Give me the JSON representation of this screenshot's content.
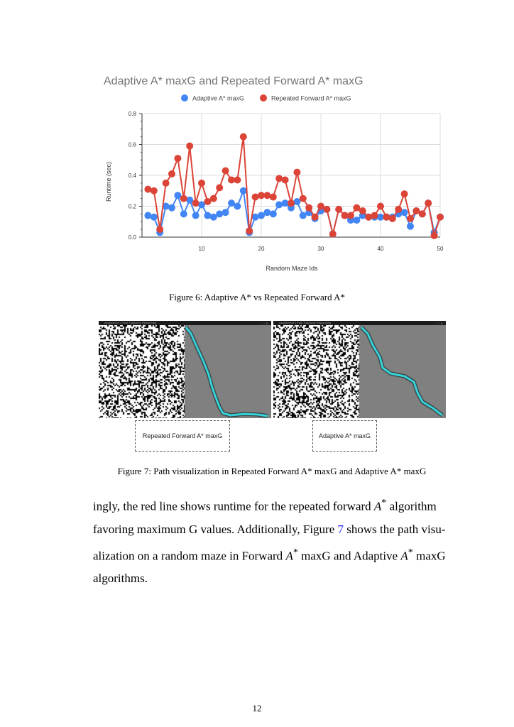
{
  "chart_data": {
    "type": "line",
    "title": "Adaptive A* maxG and Repeated Forward A* maxG",
    "xlabel": "Random Maze Ids",
    "ylabel": "Runtime (sec)",
    "xlim": [
      0,
      50
    ],
    "ylim": [
      0,
      0.8
    ],
    "xticks": [
      10,
      20,
      30,
      40,
      50
    ],
    "yticks": [
      "0.0",
      "0.2",
      "0.4",
      "0.6",
      "0.8"
    ],
    "grid": true,
    "legend_position": "top",
    "series": [
      {
        "name": "Adaptive A* maxG",
        "color": "#4285F4",
        "x": [
          1,
          2,
          3,
          4,
          5,
          6,
          7,
          8,
          9,
          10,
          11,
          12,
          13,
          14,
          15,
          16,
          17,
          18,
          19,
          20,
          21,
          22,
          23,
          24,
          25,
          26,
          27,
          28,
          29,
          30,
          31,
          32,
          33,
          34,
          35,
          36,
          37,
          38,
          39,
          40,
          41,
          42,
          43,
          44,
          45,
          46,
          47,
          48,
          49,
          50
        ],
        "values": [
          0.14,
          0.13,
          0.03,
          0.2,
          0.19,
          0.27,
          0.15,
          0.24,
          0.14,
          0.21,
          0.14,
          0.13,
          0.15,
          0.16,
          0.22,
          0.2,
          0.3,
          0.03,
          0.13,
          0.14,
          0.16,
          0.15,
          0.21,
          0.22,
          0.19,
          0.23,
          0.14,
          0.16,
          0.12,
          0.17,
          0.18,
          0.02,
          0.18,
          0.14,
          0.11,
          0.11,
          0.14,
          0.13,
          0.13,
          0.13,
          0.13,
          0.13,
          0.15,
          0.16,
          0.07,
          0.17,
          0.15,
          0.22,
          0.03,
          0.13
        ]
      },
      {
        "name": "Repeated Forward A* maxG",
        "color": "#DB4437",
        "x": [
          1,
          2,
          3,
          4,
          5,
          6,
          7,
          8,
          9,
          10,
          11,
          12,
          13,
          14,
          15,
          16,
          17,
          18,
          19,
          20,
          21,
          22,
          23,
          24,
          25,
          26,
          27,
          28,
          29,
          30,
          31,
          32,
          33,
          34,
          35,
          36,
          37,
          38,
          39,
          40,
          41,
          42,
          43,
          44,
          45,
          46,
          47,
          48,
          49,
          50
        ],
        "values": [
          0.31,
          0.3,
          0.05,
          0.35,
          0.41,
          0.51,
          0.25,
          0.59,
          0.22,
          0.35,
          0.23,
          0.25,
          0.32,
          0.43,
          0.37,
          0.37,
          0.65,
          0.04,
          0.26,
          0.27,
          0.27,
          0.26,
          0.38,
          0.37,
          0.22,
          0.42,
          0.25,
          0.19,
          0.13,
          0.2,
          0.18,
          0.02,
          0.18,
          0.14,
          0.14,
          0.19,
          0.17,
          0.13,
          0.14,
          0.2,
          0.13,
          0.12,
          0.18,
          0.28,
          0.12,
          0.17,
          0.15,
          0.22,
          0.01,
          0.13
        ]
      }
    ]
  },
  "figure6": {
    "caption": "Figure 6: Adaptive A* vs Repeated Forward A*"
  },
  "figure7": {
    "caption": "Figure 7: Path visualization in Repeated Forward A* maxG and Adaptive A* maxG",
    "left_window_title": "Assignment 1 Fast Trajectory Replanning",
    "right_window_title": "Assignment 1 Fast Trajectory Replanning",
    "left_label": "Repeated Forward A* maxG",
    "right_label": "Adaptive A* maxG",
    "maze_colors": {
      "wall": "#000000",
      "free": "#ffffff",
      "unexplored": "#808080",
      "path": "#3de0e8"
    }
  },
  "paragraph": {
    "l1a": "ingly, the red line shows runtime for the repeated forward ",
    "l1b": " algorithm",
    "l2a": "favoring maximum G values.  Additionally, Figure ",
    "l2ref": "7",
    "l2b": " shows the path visu-",
    "l3a": "alization on a random maze in Forward ",
    "l3b": " maxG and Adaptive ",
    "l3c": " maxG",
    "l4": "algorithms.",
    "math_A": "A",
    "math_star": "*"
  },
  "page_number": "12"
}
